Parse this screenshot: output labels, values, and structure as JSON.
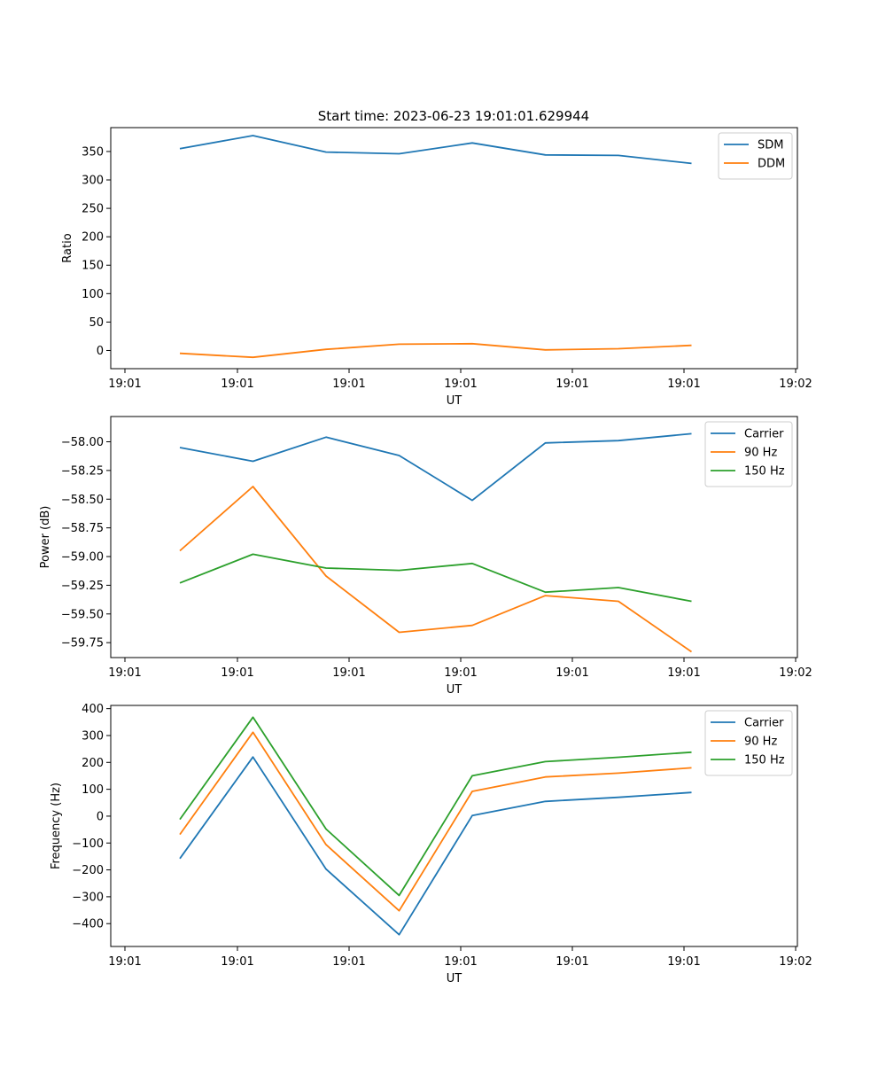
{
  "figure": {
    "title": "Start time: 2023-06-23 19:01:01.629944"
  },
  "chart_data": [
    {
      "type": "line",
      "title": "Start time: 2023-06-23 19:01:01.629944",
      "xlabel": "UT",
      "ylabel": "Ratio",
      "x_tick_labels": [
        "19:01",
        "19:01",
        "19:01",
        "19:01",
        "19:01",
        "19:01",
        "19:02"
      ],
      "y_ticks": [
        0,
        50,
        100,
        150,
        200,
        250,
        300,
        350
      ],
      "ylim": [
        -32,
        392
      ],
      "grid": false,
      "legend_position": "top-right",
      "series": [
        {
          "name": "SDM",
          "color": "#1f77b4",
          "values": [
            355,
            378,
            349,
            346,
            365,
            344,
            343,
            329
          ]
        },
        {
          "name": "DDM",
          "color": "#ff7f0e",
          "values": [
            -5,
            -12,
            2,
            11,
            12,
            1,
            3,
            9
          ]
        }
      ]
    },
    {
      "type": "line",
      "xlabel": "UT",
      "ylabel": "Power (dB)",
      "x_tick_labels": [
        "19:01",
        "19:01",
        "19:01",
        "19:01",
        "19:01",
        "19:01",
        "19:02"
      ],
      "y_ticks": [
        -59.75,
        -59.5,
        -59.25,
        -59.0,
        -58.75,
        -58.5,
        -58.25,
        -58.0
      ],
      "y_tick_labels": [
        "−59.75",
        "−59.50",
        "−59.25",
        "−59.00",
        "−58.75",
        "−58.50",
        "−58.25",
        "−58.00"
      ],
      "ylim": [
        -59.88,
        -57.78
      ],
      "grid": false,
      "legend_position": "top-right",
      "series": [
        {
          "name": "Carrier",
          "color": "#1f77b4",
          "values": [
            -58.05,
            -58.17,
            -57.96,
            -58.12,
            -58.51,
            -58.01,
            -57.99,
            -57.93
          ]
        },
        {
          "name": "90 Hz",
          "color": "#ff7f0e",
          "values": [
            -58.95,
            -58.39,
            -59.17,
            -59.66,
            -59.6,
            -59.34,
            -59.39,
            -59.83
          ]
        },
        {
          "name": "150 Hz",
          "color": "#2ca02c",
          "values": [
            -59.23,
            -58.98,
            -59.1,
            -59.12,
            -59.06,
            -59.31,
            -59.27,
            -59.39
          ]
        }
      ]
    },
    {
      "type": "line",
      "xlabel": "UT",
      "ylabel": "Frequency (Hz)",
      "x_tick_labels": [
        "19:01",
        "19:01",
        "19:01",
        "19:01",
        "19:01",
        "19:01",
        "19:02"
      ],
      "y_ticks": [
        -400,
        -300,
        -200,
        -100,
        0,
        100,
        200,
        300,
        400
      ],
      "y_tick_labels": [
        "−400",
        "−300",
        "−200",
        "−100",
        "0",
        "100",
        "200",
        "300",
        "400"
      ],
      "ylim": [
        -485,
        412
      ],
      "grid": false,
      "legend_position": "top-right",
      "series": [
        {
          "name": "Carrier",
          "color": "#1f77b4",
          "values": [
            -158,
            220,
            -197,
            -441,
            2,
            55,
            70,
            88
          ]
        },
        {
          "name": "90 Hz",
          "color": "#ff7f0e",
          "values": [
            -68,
            312,
            -106,
            -352,
            92,
            146,
            160,
            180
          ]
        },
        {
          "name": "150 Hz",
          "color": "#2ca02c",
          "values": [
            -12,
            368,
            -48,
            -295,
            150,
            203,
            219,
            238
          ]
        }
      ]
    }
  ]
}
